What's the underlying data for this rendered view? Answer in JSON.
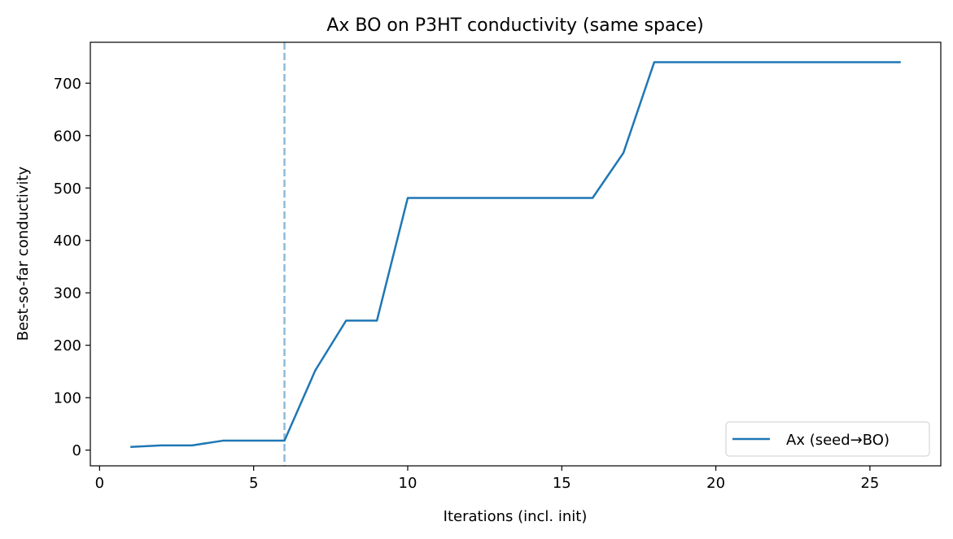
{
  "chart_data": {
    "type": "line",
    "title": "Ax BO on P3HT conductivity (same space)",
    "xlabel": "Iterations (incl. init)",
    "ylabel": "Best-so-far conductivity",
    "xlim": [
      -0.3,
      27.3
    ],
    "ylim": [
      -30,
      778
    ],
    "xticks": [
      0,
      5,
      10,
      15,
      20,
      25
    ],
    "yticks": [
      0,
      100,
      200,
      300,
      400,
      500,
      600,
      700
    ],
    "grid": false,
    "legend_position": "lower right",
    "series": [
      {
        "name": "Ax (seed→BO)",
        "color": "#1f77b4",
        "x": [
          1,
          2,
          3,
          4,
          5,
          6,
          7,
          8,
          9,
          10,
          11,
          12,
          13,
          14,
          15,
          16,
          17,
          18,
          19,
          20,
          21,
          22,
          23,
          24,
          25,
          26
        ],
        "y": [
          6,
          9,
          9,
          18,
          18,
          18,
          152,
          247,
          247,
          481,
          481,
          481,
          481,
          481,
          481,
          481,
          567,
          740,
          740,
          740,
          740,
          740,
          740,
          740,
          740,
          740
        ]
      }
    ],
    "vlines": [
      {
        "x": 6,
        "color": "#1f77b4",
        "style": "dashed",
        "alpha": 0.5
      }
    ]
  }
}
